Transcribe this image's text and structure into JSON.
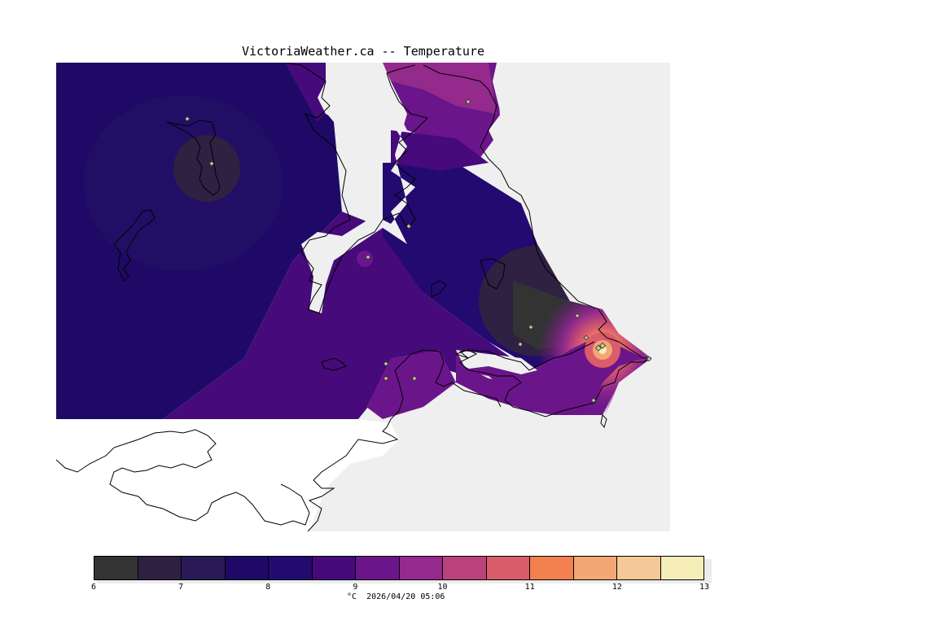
{
  "header": {
    "title": "VictoriaWeather.ca -- Temperature"
  },
  "legend": {
    "units": "°C",
    "timestamp": "2026/04/20 05:06",
    "colors": [
      "#333333",
      "#2e2142",
      "#291a57",
      "#1e0a66",
      "#230a70",
      "#460a7a",
      "#6a168a",
      "#932a8c",
      "#bb417d",
      "#db5c6a",
      "#f2814f",
      "#f3a774",
      "#f5c897",
      "#f6eeb8"
    ],
    "ticks": [
      "6",
      "7",
      "8",
      "9",
      "10",
      "11",
      "12",
      "13"
    ]
  },
  "map": {
    "land_color": "#ffffff",
    "water_color": "#efefef",
    "station_color": "#c8c890"
  }
}
